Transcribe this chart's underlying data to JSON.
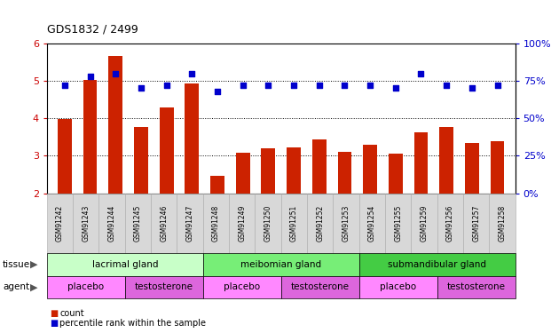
{
  "title": "GDS1832 / 2499",
  "samples": [
    "GSM91242",
    "GSM91243",
    "GSM91244",
    "GSM91245",
    "GSM91246",
    "GSM91247",
    "GSM91248",
    "GSM91249",
    "GSM91250",
    "GSM91251",
    "GSM91252",
    "GSM91253",
    "GSM91254",
    "GSM91255",
    "GSM91259",
    "GSM91256",
    "GSM91257",
    "GSM91258"
  ],
  "bar_values": [
    3.98,
    5.02,
    5.67,
    3.77,
    4.28,
    4.93,
    2.47,
    3.07,
    3.2,
    3.22,
    3.44,
    3.1,
    3.29,
    3.05,
    3.63,
    3.77,
    3.35,
    3.38
  ],
  "dot_values": [
    72,
    78,
    80,
    70,
    72,
    80,
    68,
    72,
    72,
    72,
    72,
    72,
    72,
    70,
    80,
    72,
    70,
    72
  ],
  "bar_color": "#cc2200",
  "dot_color": "#0000cc",
  "ylim_left": [
    2,
    6
  ],
  "ylim_right": [
    0,
    100
  ],
  "yticks_left": [
    2,
    3,
    4,
    5,
    6
  ],
  "yticks_right": [
    0,
    25,
    50,
    75,
    100
  ],
  "tissue_groups": [
    {
      "label": "lacrimal gland",
      "start": 0,
      "end": 6,
      "color": "#c8ffc8"
    },
    {
      "label": "meibomian gland",
      "start": 6,
      "end": 12,
      "color": "#77ee77"
    },
    {
      "label": "submandibular gland",
      "start": 12,
      "end": 18,
      "color": "#44cc44"
    }
  ],
  "agent_groups": [
    {
      "label": "placebo",
      "start": 0,
      "end": 3,
      "color": "#ff88ff"
    },
    {
      "label": "testosterone",
      "start": 3,
      "end": 6,
      "color": "#dd66dd"
    },
    {
      "label": "placebo",
      "start": 6,
      "end": 9,
      "color": "#ff88ff"
    },
    {
      "label": "testosterone",
      "start": 9,
      "end": 12,
      "color": "#dd66dd"
    },
    {
      "label": "placebo",
      "start": 12,
      "end": 15,
      "color": "#ff88ff"
    },
    {
      "label": "testosterone",
      "start": 15,
      "end": 18,
      "color": "#dd66dd"
    }
  ],
  "background_color": "#ffffff",
  "plot_bg_color": "#ffffff",
  "tick_label_color_left": "#cc0000",
  "tick_label_color_right": "#0000cc",
  "xticklabel_bg": "#d8d8d8"
}
